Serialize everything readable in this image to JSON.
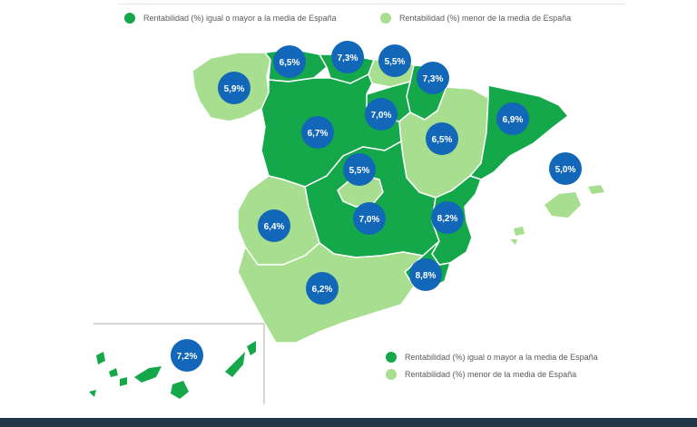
{
  "colors": {
    "above_or_equal": "#14a84a",
    "below": "#a7de8f",
    "bubble": "#1267b8",
    "bubble_text": "#ffffff",
    "divider": "#213747"
  },
  "legend": {
    "above_label": "Rentabilidad (%) igual o mayor a la media de España",
    "below_label": "Rentabilidad (%) menor de la media de España"
  },
  "regions": [
    {
      "name": "Galicia",
      "value": "5,9%",
      "category": "below"
    },
    {
      "name": "Asturias",
      "value": "6,5%",
      "category": "above"
    },
    {
      "name": "Cantabria",
      "value": "7,3%",
      "category": "above"
    },
    {
      "name": "País Vasco",
      "value": "5,5%",
      "category": "below"
    },
    {
      "name": "Navarra",
      "value": "7,3%",
      "category": "above"
    },
    {
      "name": "La Rioja",
      "value": "7,0%",
      "category": "above"
    },
    {
      "name": "Castilla y León",
      "value": "6,7%",
      "category": "above"
    },
    {
      "name": "Aragón",
      "value": "6,5%",
      "category": "below"
    },
    {
      "name": "Cataluña",
      "value": "6,9%",
      "category": "above"
    },
    {
      "name": "Madrid",
      "value": "5,5%",
      "category": "below"
    },
    {
      "name": "Islas Baleares",
      "value": "5,0%",
      "category": "below"
    },
    {
      "name": "Extremadura",
      "value": "6,4%",
      "category": "below"
    },
    {
      "name": "Castilla-La Mancha",
      "value": "7,0%",
      "category": "above"
    },
    {
      "name": "Comunidad Valenciana",
      "value": "8,2%",
      "category": "above"
    },
    {
      "name": "Región de Murcia",
      "value": "8,8%",
      "category": "above"
    },
    {
      "name": "Andalucía",
      "value": "6,2%",
      "category": "below"
    },
    {
      "name": "Canarias",
      "value": "7,2%",
      "category": "above"
    }
  ]
}
